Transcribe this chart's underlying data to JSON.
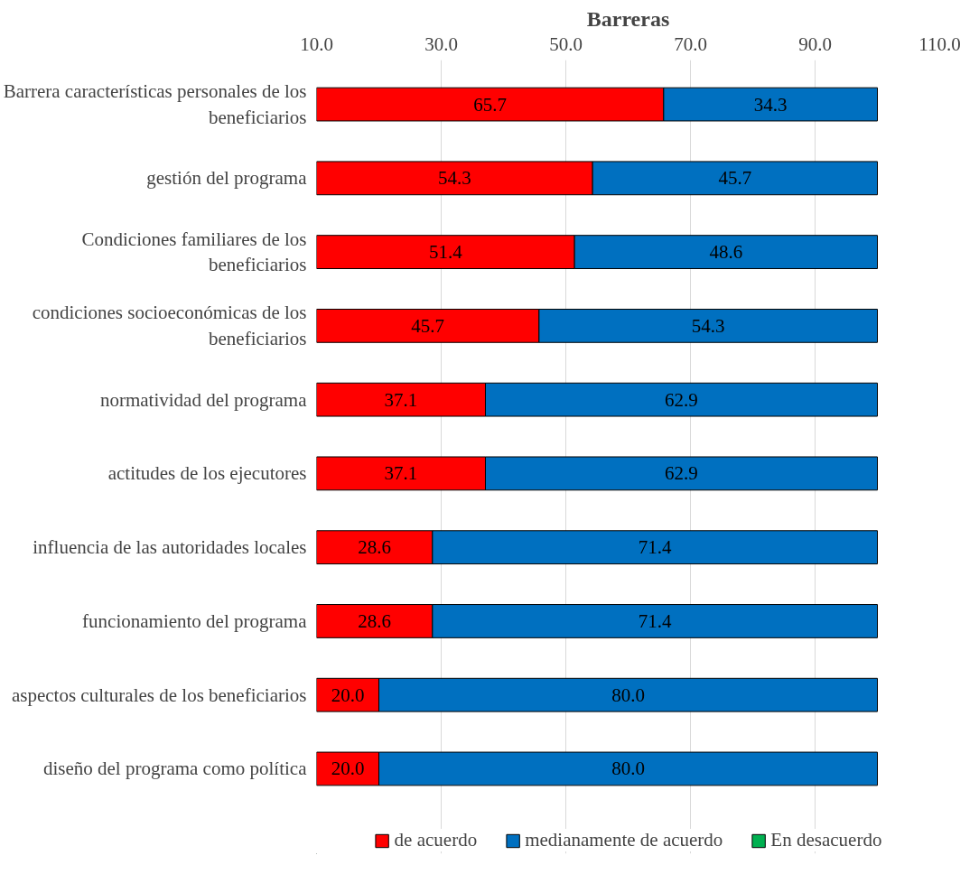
{
  "chart_data": {
    "type": "bar",
    "orientation": "horizontal",
    "stacked": true,
    "title": "Barreras",
    "categories": [
      "Barrera características personales de los beneficiarios",
      "gestión del programa",
      "Condiciones familiares de los beneficiarios",
      "condiciones socioeconómicas de los beneficiarios",
      "normatividad del programa",
      "actitudes de los ejecutores",
      "influencia de las autoridades locales",
      "funcionamiento del programa",
      "aspectos culturales de los beneficiarios",
      "diseño del programa como política"
    ],
    "series": [
      {
        "name": "de acuerdo",
        "color": "#ff0000",
        "values": [
          65.7,
          54.3,
          51.4,
          45.7,
          37.1,
          37.1,
          28.6,
          28.6,
          20.0,
          20.0
        ],
        "value_labels": [
          "65.7",
          "54.3",
          "51.4",
          "45.7",
          "37.1",
          "37.1",
          "28.6",
          "28.6",
          "20.0",
          "20.0"
        ]
      },
      {
        "name": "medianamente de acuerdo",
        "color": "#0070c0",
        "values": [
          34.3,
          45.7,
          48.6,
          54.3,
          62.9,
          62.9,
          71.4,
          71.4,
          80.0,
          80.0
        ],
        "value_labels": [
          "34.3",
          "45.7",
          "48.6",
          "54.3",
          "62.9",
          "62.9",
          "71.4",
          "71.4",
          "80.0",
          "80.0"
        ]
      },
      {
        "name": "En desacuerdo",
        "color": "#00b050",
        "values": [
          null,
          null,
          null,
          null,
          null,
          null,
          null,
          null,
          null,
          null
        ]
      }
    ],
    "xlim": [
      10,
      110
    ],
    "xticks": [
      {
        "value": 10,
        "label": "10.0"
      },
      {
        "value": 30,
        "label": "30.0"
      },
      {
        "value": 50,
        "label": "50.0"
      },
      {
        "value": 70,
        "label": "70.0"
      },
      {
        "value": 90,
        "label": "90.0"
      },
      {
        "value": 110,
        "label": "110.0"
      }
    ],
    "grid": "x",
    "legend": "bottom"
  }
}
